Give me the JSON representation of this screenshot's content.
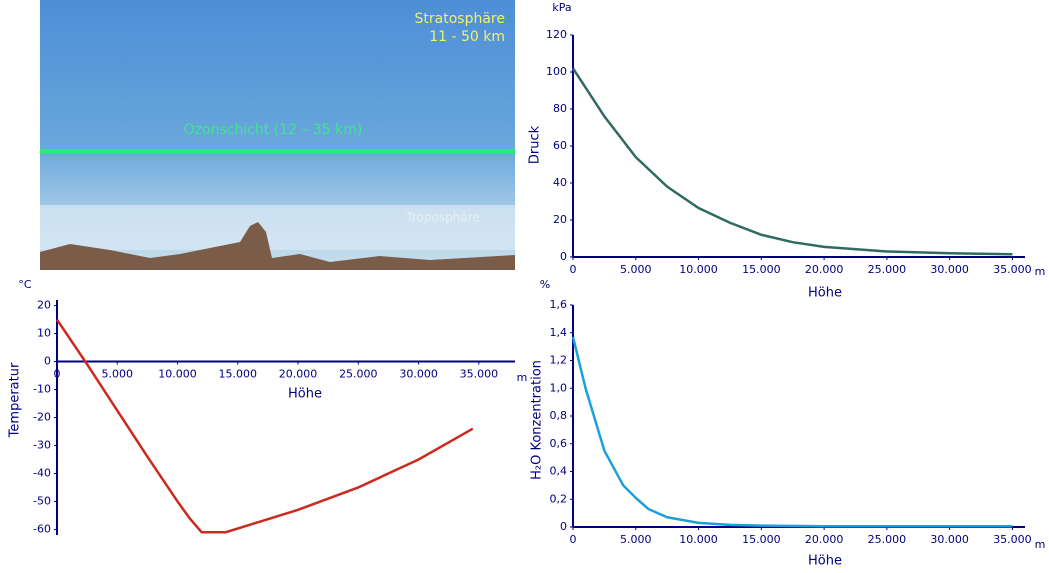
{
  "illustration": {
    "stratosphere": "Stratosphäre",
    "stratosphere_range": "11 - 50 km",
    "ozone_layer": "Ozonschicht (12 – 35 km)",
    "troposphere": "Troposphäre"
  },
  "chart_data": [
    {
      "type": "line",
      "y_unit": "kPa",
      "x_unit": "m",
      "ylabel": "Druck",
      "xlabel": "Höhe",
      "x": [
        0,
        2500,
        5000,
        7500,
        10000,
        12500,
        15000,
        17500,
        20000,
        25000,
        30000,
        35000
      ],
      "series": [
        {
          "name": "Druck",
          "color": "#2f6b60",
          "values": [
            102,
            76,
            54,
            38,
            26.5,
            18.5,
            12,
            8,
            5.5,
            3,
            2,
            1.5
          ]
        }
      ],
      "xlim": [
        0,
        36000
      ],
      "ylim": [
        0,
        120
      ],
      "xticks": [
        0,
        {
          "value": 5000,
          "label": "5.000"
        },
        {
          "value": 10000,
          "label": "10.000"
        },
        {
          "value": 15000,
          "label": "15.000"
        },
        {
          "value": 20000,
          "label": "20.000"
        },
        {
          "value": 25000,
          "label": "25.000"
        },
        {
          "value": 30000,
          "label": "30.000"
        },
        {
          "value": 35000,
          "label": "35.000"
        }
      ],
      "yticks": [
        0,
        20,
        40,
        60,
        80,
        100,
        120
      ]
    },
    {
      "type": "line",
      "y_unit": "°C",
      "x_unit": "m",
      "ylabel": "Temperatur",
      "xlabel": "Höhe",
      "x": [
        0,
        2500,
        5000,
        7500,
        10000,
        11000,
        12000,
        14000,
        17000,
        20000,
        25000,
        30000,
        34500
      ],
      "series": [
        {
          "name": "Temperatur",
          "color": "#cc2a1e",
          "values": [
            15,
            -1,
            -17.5,
            -34,
            -50,
            -56,
            -61,
            -61,
            -57,
            -53,
            -45,
            -35,
            -24
          ]
        }
      ],
      "xlim": [
        0,
        38000
      ],
      "ylim": [
        -62,
        22
      ],
      "xticks": [
        0,
        {
          "value": 5000,
          "label": "5.000"
        },
        {
          "value": 10000,
          "label": "10.000"
        },
        {
          "value": 15000,
          "label": "15.000"
        },
        {
          "value": 20000,
          "label": "20.000"
        },
        {
          "value": 25000,
          "label": "25.000"
        },
        {
          "value": 30000,
          "label": "30.000"
        },
        {
          "value": 35000,
          "label": "35.000"
        }
      ],
      "yticks": [
        20,
        10,
        0,
        -10,
        -20,
        -30,
        -40,
        -50,
        -60
      ]
    },
    {
      "type": "line",
      "y_unit": "%",
      "x_unit": "m",
      "ylabel": "H₂O Konzentration",
      "xlabel": "Höhe",
      "x": [
        0,
        1000,
        2500,
        4000,
        5000,
        6000,
        7500,
        10000,
        12500,
        15000,
        20000,
        25000,
        30000,
        35000
      ],
      "series": [
        {
          "name": "H₂O Konzentration",
          "color": "#1ba0dc",
          "values": [
            1.37,
            1.0,
            0.55,
            0.3,
            0.21,
            0.13,
            0.07,
            0.03,
            0.015,
            0.01,
            0.005,
            0.005,
            0.005,
            0.005
          ]
        }
      ],
      "xlim": [
        0,
        36000
      ],
      "ylim": [
        0,
        1.6
      ],
      "xticks": [
        0,
        {
          "value": 5000,
          "label": "5.000"
        },
        {
          "value": 10000,
          "label": "10.000"
        },
        {
          "value": 15000,
          "label": "15.000"
        },
        {
          "value": 20000,
          "label": "20.000"
        },
        {
          "value": 25000,
          "label": "25.000"
        },
        {
          "value": 30000,
          "label": "30.000"
        },
        {
          "value": 35000,
          "label": "35.000"
        }
      ],
      "yticks": [
        0,
        {
          "value": 0.2,
          "label": "0,2"
        },
        {
          "value": 0.4,
          "label": "0,4"
        },
        {
          "value": 0.6,
          "label": "0,6"
        },
        {
          "value": 0.8,
          "label": "0,8"
        },
        {
          "value": 1,
          "label": "1,0"
        },
        {
          "value": 1.2,
          "label": "1,2"
        },
        {
          "value": 1.4,
          "label": "1,4"
        },
        {
          "value": 1.6,
          "label": "1,6"
        }
      ]
    }
  ]
}
